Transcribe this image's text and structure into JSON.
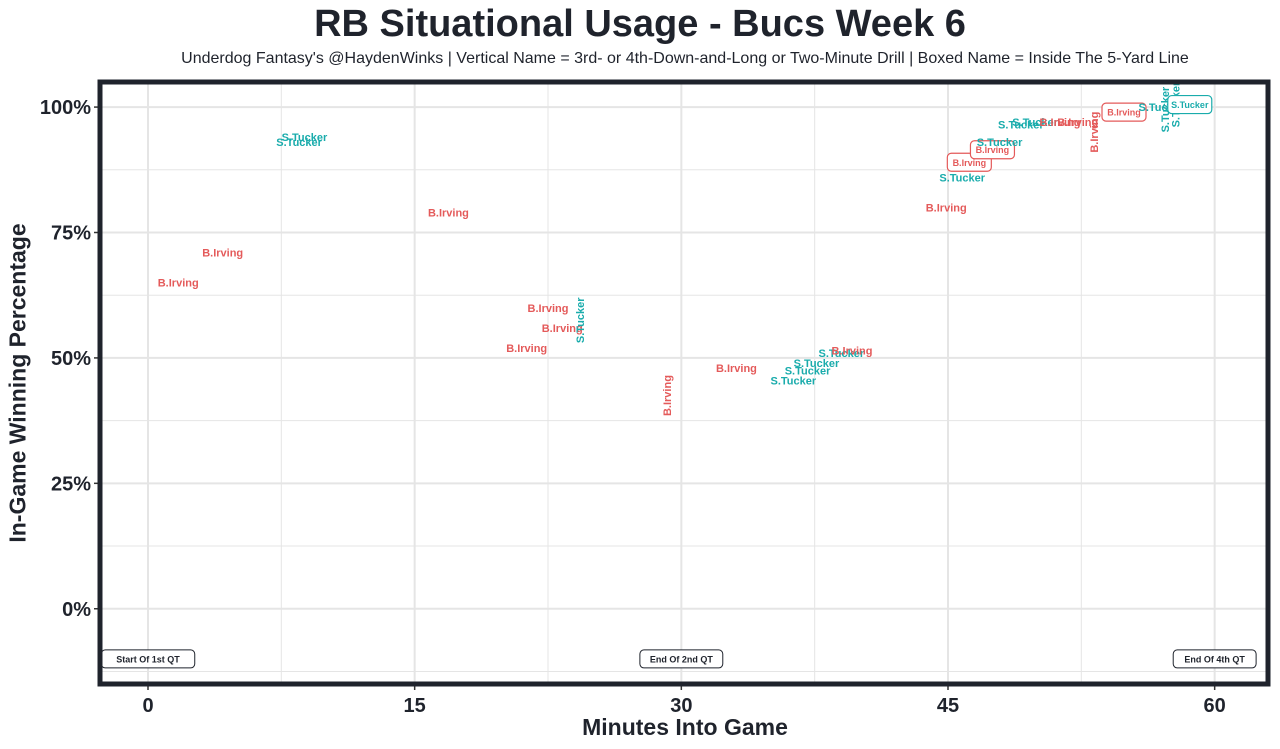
{
  "chart_data": {
    "type": "scatter",
    "title": "RB Situational Usage - Bucs Week 6",
    "subtitle": "Underdog Fantasy's @HaydenWinks | Vertical Name = 3rd- or 4th-Down-and-Long or Two-Minute Drill | Boxed Name = Inside The 5-Yard Line",
    "xlabel": "Minutes Into Game",
    "ylabel": "In-Game Winning Percentage",
    "xlim": [
      -2.7,
      63
    ],
    "ylim": [
      -15,
      105
    ],
    "xticks": [
      0,
      15,
      30,
      45,
      60
    ],
    "yticks": [
      0,
      25,
      50,
      75,
      100
    ],
    "ytick_labels": [
      "0%",
      "25%",
      "50%",
      "75%",
      "100%"
    ],
    "grid": true,
    "colors": {
      "B.Irving": "#e45a5a",
      "S.Tucker": "#1aacac",
      "frame": "#1f232c",
      "grid": "#e5e5e5"
    },
    "quarter_labels": [
      {
        "x": 0,
        "y": -10,
        "text": "Start Of 1st QT"
      },
      {
        "x": 30,
        "y": -10,
        "text": "End Of 2nd QT"
      },
      {
        "x": 60,
        "y": -10,
        "text": "End Of 4th QT"
      }
    ],
    "points": [
      {
        "player": "B.Irving",
        "x": 1.7,
        "y": 65,
        "vertical": false,
        "boxed": false
      },
      {
        "player": "B.Irving",
        "x": 4.2,
        "y": 71,
        "vertical": false,
        "boxed": false
      },
      {
        "player": "S.Tucker",
        "x": 8.8,
        "y": 94,
        "vertical": false,
        "boxed": false
      },
      {
        "player": "S.Tucker",
        "x": 8.5,
        "y": 93,
        "vertical": false,
        "boxed": false
      },
      {
        "player": "B.Irving",
        "x": 16.9,
        "y": 79,
        "vertical": false,
        "boxed": false
      },
      {
        "player": "B.Irving",
        "x": 22.5,
        "y": 60,
        "vertical": false,
        "boxed": false
      },
      {
        "player": "B.Irving",
        "x": 23.3,
        "y": 56,
        "vertical": false,
        "boxed": false
      },
      {
        "player": "S.Tucker",
        "x": 24.3,
        "y": 57.5,
        "vertical": true,
        "boxed": false
      },
      {
        "player": "B.Irving",
        "x": 21.3,
        "y": 52,
        "vertical": false,
        "boxed": false
      },
      {
        "player": "B.Irving",
        "x": 29.2,
        "y": 42.5,
        "vertical": true,
        "boxed": false
      },
      {
        "player": "B.Irving",
        "x": 33.1,
        "y": 48,
        "vertical": false,
        "boxed": false
      },
      {
        "player": "S.Tucker",
        "x": 39.0,
        "y": 51,
        "vertical": false,
        "boxed": false
      },
      {
        "player": "B.Irving",
        "x": 39.6,
        "y": 51.5,
        "vertical": false,
        "boxed": false
      },
      {
        "player": "S.Tucker",
        "x": 37.6,
        "y": 49,
        "vertical": false,
        "boxed": false
      },
      {
        "player": "S.Tucker",
        "x": 37.1,
        "y": 47.5,
        "vertical": false,
        "boxed": false
      },
      {
        "player": "S.Tucker",
        "x": 36.3,
        "y": 45.5,
        "vertical": false,
        "boxed": false
      },
      {
        "player": "B.Irving",
        "x": 44.9,
        "y": 80,
        "vertical": false,
        "boxed": false
      },
      {
        "player": "S.Tucker",
        "x": 45.8,
        "y": 86,
        "vertical": false,
        "boxed": false
      },
      {
        "player": "B.Irving",
        "x": 46.2,
        "y": 89,
        "vertical": false,
        "boxed": true
      },
      {
        "player": "B.Irving",
        "x": 47.5,
        "y": 91.5,
        "vertical": false,
        "boxed": true
      },
      {
        "player": "S.Tucker",
        "x": 47.9,
        "y": 93,
        "vertical": false,
        "boxed": false
      },
      {
        "player": "S.Tucker",
        "x": 49.1,
        "y": 96.5,
        "vertical": false,
        "boxed": false
      },
      {
        "player": "S.Tucker",
        "x": 49.9,
        "y": 97,
        "vertical": false,
        "boxed": false
      },
      {
        "player": "B.Irving",
        "x": 51.3,
        "y": 97,
        "vertical": false,
        "boxed": false
      },
      {
        "player": "B.Irving",
        "x": 52.3,
        "y": 97,
        "vertical": false,
        "boxed": false
      },
      {
        "player": "B.Irving",
        "x": 53.2,
        "y": 95,
        "vertical": true,
        "boxed": false
      },
      {
        "player": "B.Irving",
        "x": 54.9,
        "y": 99,
        "vertical": false,
        "boxed": true
      },
      {
        "player": "S.Tucker",
        "x": 57.0,
        "y": 100,
        "vertical": false,
        "boxed": false
      },
      {
        "player": "S.Tucker",
        "x": 57.2,
        "y": 99.5,
        "vertical": true,
        "boxed": false
      },
      {
        "player": "S.Tucker",
        "x": 57.8,
        "y": 100.5,
        "vertical": true,
        "boxed": false
      },
      {
        "player": "S.Tucker",
        "x": 58.6,
        "y": 100.5,
        "vertical": false,
        "boxed": true
      }
    ]
  }
}
